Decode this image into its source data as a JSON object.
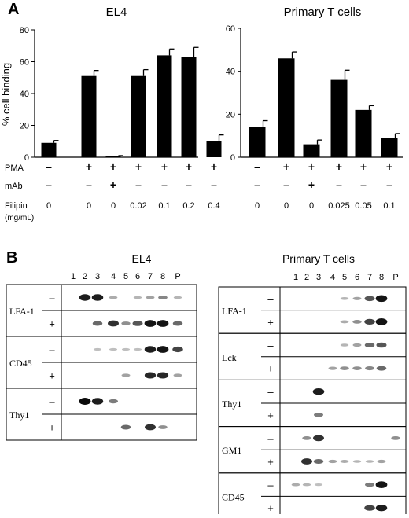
{
  "panelA": {
    "label": "A",
    "charts": [
      {
        "title": "EL4",
        "ylabel": "% cell binding",
        "yticks": [
          "0",
          "20",
          "40",
          "60",
          "80"
        ],
        "ylim": [
          0,
          80
        ],
        "values": [
          9,
          51,
          0.5,
          51,
          64,
          63,
          10
        ],
        "errors": [
          1.5,
          3.5,
          0.5,
          4,
          4,
          6,
          4
        ],
        "rows": [
          {
            "label": "PMA",
            "cells": [
              "–",
              "+",
              "+",
              "+",
              "+",
              "+",
              "+"
            ]
          },
          {
            "label": "mAb",
            "cells": [
              "–",
              "–",
              "+",
              "–",
              "–",
              "–",
              "–"
            ]
          },
          {
            "label": "Filipin",
            "cells": [
              "0",
              "0",
              "0",
              "0.02",
              "0.1",
              "0.2",
              "0.4"
            ]
          }
        ],
        "units_label": "(mg/mL)"
      },
      {
        "title": "Primary T cells",
        "ylabel": "",
        "yticks": [
          "0",
          "20",
          "40",
          "60"
        ],
        "ylim": [
          0,
          60
        ],
        "values": [
          14,
          46,
          6,
          36,
          22,
          9
        ],
        "errors": [
          3,
          3,
          2,
          4.5,
          2,
          2
        ],
        "rows": [
          {
            "label": "",
            "cells": [
              "–",
              "+",
              "+",
              "+",
              "+",
              "+"
            ]
          },
          {
            "label": "",
            "cells": [
              "–",
              "–",
              "+",
              "–",
              "–",
              "–"
            ]
          },
          {
            "label": "",
            "cells": [
              "0",
              "0",
              "0",
              "0.025",
              "0.05",
              "0.1"
            ]
          }
        ]
      }
    ]
  },
  "panelB": {
    "label": "B",
    "blots": [
      {
        "title": "EL4",
        "lanes": [
          "1",
          "2",
          "3",
          "4",
          "5",
          "6",
          "7",
          "8",
          "P"
        ],
        "groups": [
          {
            "name": "LFA-1",
            "rows": [
              {
                "sign": "–",
                "bands": [
                  0,
                  0.9,
                  0.9,
                  0.15,
                  0,
                  0.1,
                  0.2,
                  0.35,
                  0.1
                ]
              },
              {
                "sign": "+",
                "bands": [
                  0,
                  0,
                  0.5,
                  0.8,
                  0.3,
                  0.6,
                  0.95,
                  0.95,
                  0.5
                ]
              }
            ]
          },
          {
            "name": "CD45",
            "rows": [
              {
                "sign": "–",
                "bands": [
                  0,
                  0,
                  0.05,
                  0.05,
                  0.05,
                  0.05,
                  0.9,
                  0.95,
                  0.7
                ]
              },
              {
                "sign": "+",
                "bands": [
                  0,
                  0,
                  0,
                  0,
                  0.2,
                  0,
                  0.85,
                  0.85,
                  0.2
                ]
              }
            ]
          },
          {
            "name": "Thy1",
            "rows": [
              {
                "sign": "–",
                "bands": [
                  0,
                  1,
                  0.9,
                  0.4,
                  0,
                  0,
                  0,
                  0,
                  0
                ]
              },
              {
                "sign": "+",
                "bands": [
                  0,
                  0,
                  0,
                  0,
                  0.5,
                  0,
                  0.8,
                  0.3,
                  0
                ]
              }
            ]
          }
        ]
      },
      {
        "title": "Primary T cells",
        "lanes": [
          "1",
          "2",
          "3",
          "4",
          "5",
          "6",
          "7",
          "8",
          "P"
        ],
        "groups": [
          {
            "name": "LFA-1",
            "rows": [
              {
                "sign": "–",
                "bands": [
                  0,
                  0,
                  0,
                  0,
                  0.1,
                  0.2,
                  0.6,
                  0.95,
                  0
                ]
              },
              {
                "sign": "+",
                "bands": [
                  0,
                  0,
                  0,
                  0,
                  0.15,
                  0.3,
                  0.7,
                  0.95,
                  0
                ]
              }
            ]
          },
          {
            "name": "Lck",
            "rows": [
              {
                "sign": "–",
                "bands": [
                  0,
                  0,
                  0,
                  0,
                  0.1,
                  0.2,
                  0.5,
                  0.6,
                  0
                ]
              },
              {
                "sign": "+",
                "bands": [
                  0,
                  0,
                  0,
                  0.2,
                  0.3,
                  0.3,
                  0.35,
                  0.5,
                  0
                ]
              }
            ]
          },
          {
            "name": "Thy1",
            "rows": [
              {
                "sign": "–",
                "bands": [
                  0,
                  0,
                  0.9,
                  0,
                  0,
                  0,
                  0,
                  0,
                  0
                ]
              },
              {
                "sign": "+",
                "bands": [
                  0,
                  0,
                  0.4,
                  0,
                  0,
                  0,
                  0,
                  0,
                  0
                ]
              }
            ]
          },
          {
            "name": "GM1",
            "rows": [
              {
                "sign": "–",
                "bands": [
                  0,
                  0.3,
                  0.8,
                  0,
                  0,
                  0,
                  0,
                  0,
                  0.3
                ]
              },
              {
                "sign": "+",
                "bands": [
                  0,
                  0.8,
                  0.5,
                  0.2,
                  0.15,
                  0.1,
                  0.1,
                  0.2,
                  0
                ]
              }
            ]
          },
          {
            "name": "CD45",
            "rows": [
              {
                "sign": "–",
                "bands": [
                  0.15,
                  0.1,
                  0.05,
                  0,
                  0,
                  0,
                  0.4,
                  0.95,
                  0
                ]
              },
              {
                "sign": "+",
                "bands": [
                  0,
                  0,
                  0,
                  0,
                  0,
                  0,
                  0.7,
                  0.9,
                  0
                ]
              }
            ]
          }
        ]
      }
    ]
  }
}
